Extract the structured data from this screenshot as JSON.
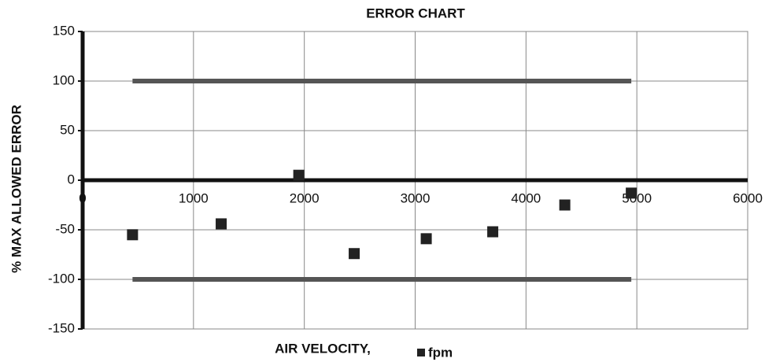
{
  "chart_data": {
    "type": "scatter",
    "title": "ERROR CHART",
    "x_label": "AIR VELOCITY,",
    "y_label": "% MAX ALLOWED ERROR",
    "series": [
      {
        "name": "fpm",
        "color": "#222222",
        "x": [
          450,
          1250,
          1950,
          2450,
          3100,
          3700,
          4350,
          4950
        ],
        "values": [
          -55,
          -44,
          5,
          -74,
          -59,
          -52,
          -25,
          -13
        ]
      }
    ],
    "lines": [
      {
        "color": "#555555",
        "x": [
          450,
          4950
        ],
        "values": [
          100,
          100
        ]
      },
      {
        "color": "#555555",
        "x": [
          450,
          4950
        ],
        "values": [
          -100,
          -100
        ]
      }
    ],
    "xlim": [
      0,
      6000
    ],
    "xticks": [
      0,
      1000,
      2000,
      3000,
      4000,
      5000,
      6000
    ],
    "ylim": [
      -150,
      150
    ],
    "yticks": [
      -150,
      -100,
      -50,
      0,
      50,
      100,
      150
    ],
    "grid": true,
    "legend": "bottom"
  }
}
